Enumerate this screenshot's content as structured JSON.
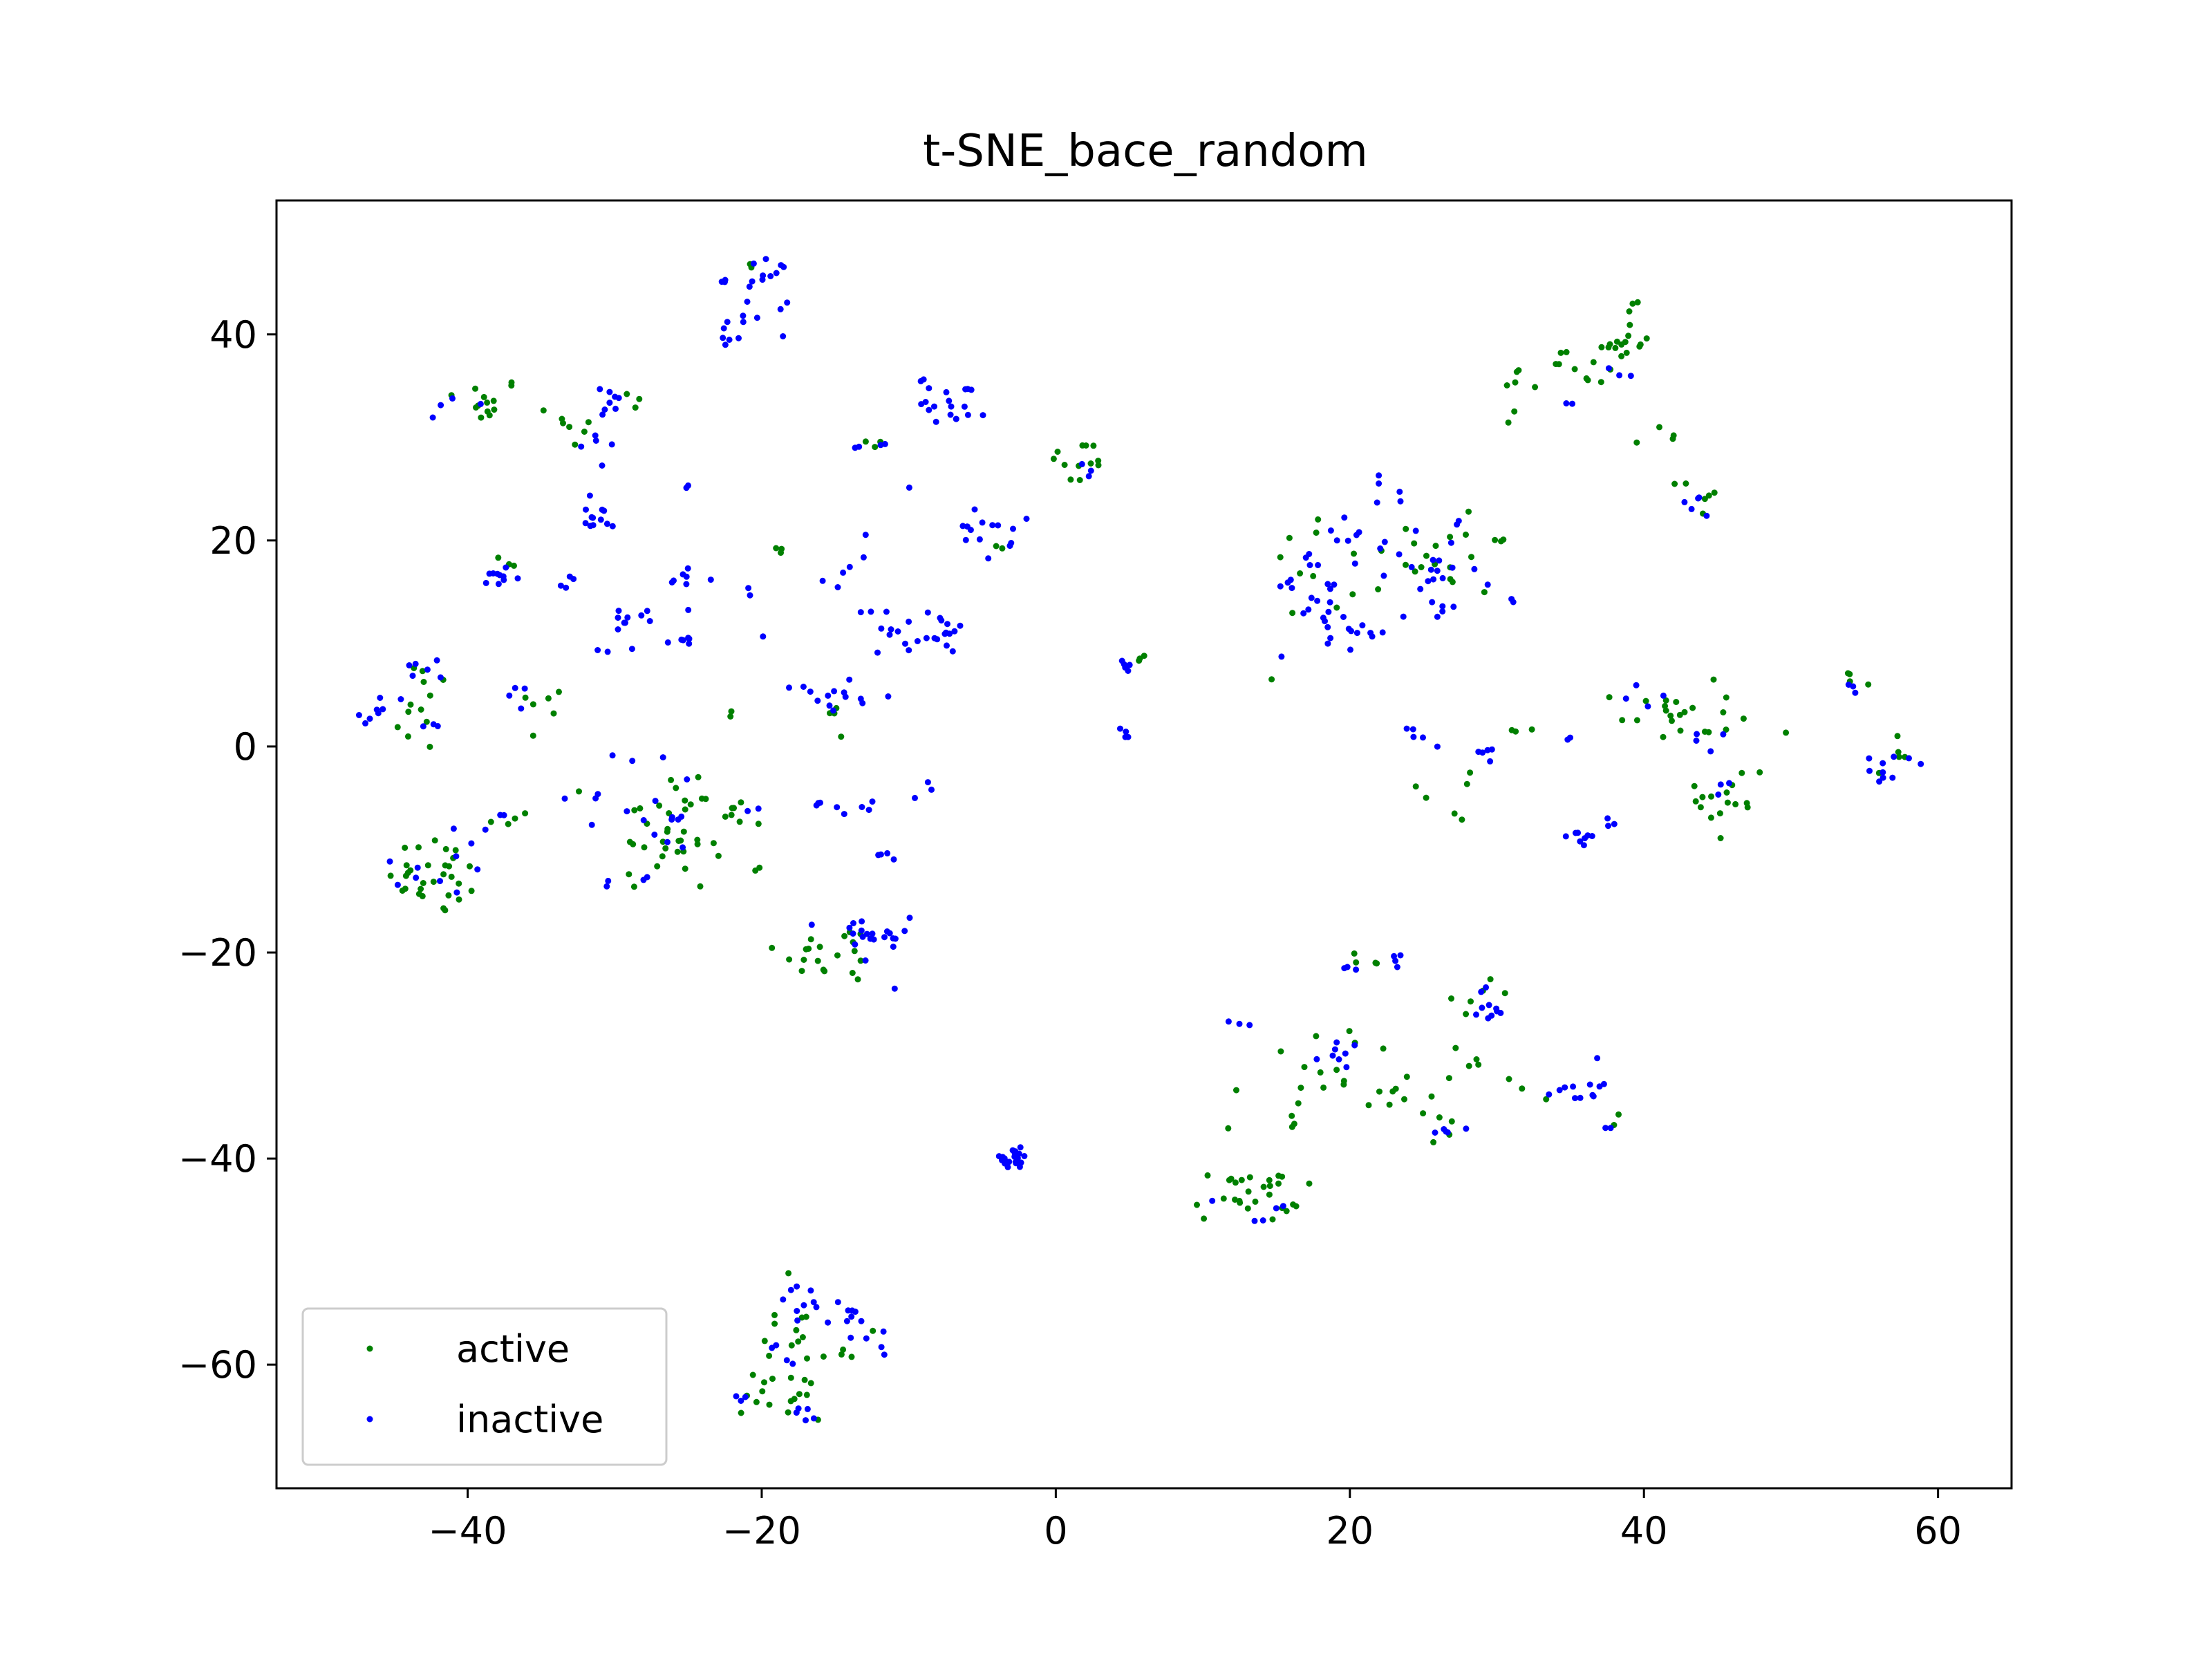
{
  "colors": {
    "active": "#008000",
    "inactive": "#0000ff"
  },
  "chart_data": {
    "type": "scatter",
    "title": "t-SNE_bace_random",
    "xlabel": "",
    "ylabel": "",
    "xlim": [
      -53,
      65
    ],
    "ylim": [
      -72,
      53
    ],
    "xticks": [
      -40,
      -20,
      0,
      20,
      40,
      60
    ],
    "yticks": [
      -60,
      -40,
      -20,
      0,
      20,
      40
    ],
    "xtick_labels": [
      "−40",
      "−20",
      "0",
      "20",
      "40",
      "60"
    ],
    "ytick_labels": [
      "−60",
      "−40",
      "−20",
      "0",
      "20",
      "40"
    ],
    "legend_position": "lower-left",
    "grid": false,
    "series": [
      {
        "name": "active",
        "color": "#008000",
        "clusters": [
          {
            "cx": -39,
            "cy": 33.5,
            "sx": 1.5,
            "sy": 1.2,
            "n": 14
          },
          {
            "cx": -33,
            "cy": 31,
            "sx": 1.0,
            "sy": 1.0,
            "n": 6
          },
          {
            "cx": -29,
            "cy": 33.5,
            "sx": 0.8,
            "sy": 0.8,
            "n": 3
          },
          {
            "cx": -37,
            "cy": 18,
            "sx": 0.5,
            "sy": 0.8,
            "n": 3
          },
          {
            "cx": -43,
            "cy": 4,
            "sx": 1.2,
            "sy": 2.5,
            "n": 12
          },
          {
            "cx": -35,
            "cy": 3,
            "sx": 0.8,
            "sy": 1.6,
            "n": 6
          },
          {
            "cx": -42,
            "cy": -12.5,
            "sx": 1.7,
            "sy": 2.0,
            "n": 30
          },
          {
            "cx": -37.5,
            "cy": -7.2,
            "sx": 0.5,
            "sy": 0.3,
            "n": 3
          },
          {
            "cx": -26,
            "cy": -8,
            "sx": 2.5,
            "sy": 3.2,
            "n": 40
          },
          {
            "cx": -22,
            "cy": -6,
            "sx": 1.0,
            "sy": 0.8,
            "n": 4
          },
          {
            "cx": -20,
            "cy": -12,
            "sx": 0.3,
            "sy": 0.3,
            "n": 2
          },
          {
            "cx": -19,
            "cy": 19,
            "sx": 0.4,
            "sy": 0.4,
            "n": 3
          },
          {
            "cx": -22.5,
            "cy": 3,
            "sx": 0.3,
            "sy": 0.3,
            "n": 2
          },
          {
            "cx": -21,
            "cy": 46.5,
            "sx": 0.4,
            "sy": 0.3,
            "n": 2
          },
          {
            "cx": -12,
            "cy": 29.5,
            "sx": 0.6,
            "sy": 0.5,
            "n": 3
          },
          {
            "cx": -15,
            "cy": 3,
            "sx": 0.8,
            "sy": 1.5,
            "n": 4
          },
          {
            "cx": -15,
            "cy": -20,
            "sx": 2.0,
            "sy": 1.5,
            "n": 20
          },
          {
            "cx": -4,
            "cy": 19.5,
            "sx": 0.4,
            "sy": 0.4,
            "n": 2
          },
          {
            "cx": 1.5,
            "cy": 27.5,
            "sx": 1.0,
            "sy": 1.2,
            "n": 12
          },
          {
            "cx": 6,
            "cy": 8.5,
            "sx": 0.3,
            "sy": 0.4,
            "n": 3
          },
          {
            "cx": 17,
            "cy": 17,
            "sx": 1.5,
            "sy": 2.5,
            "n": 8
          },
          {
            "cx": 24,
            "cy": 19,
            "sx": 2.5,
            "sy": 3.0,
            "n": 14
          },
          {
            "cx": 28,
            "cy": 17,
            "sx": 1.5,
            "sy": 2.5,
            "n": 8
          },
          {
            "cx": 34,
            "cy": 36,
            "sx": 1.8,
            "sy": 1.5,
            "n": 15
          },
          {
            "cx": 38.5,
            "cy": 39.5,
            "sx": 1.2,
            "sy": 1.5,
            "n": 18
          },
          {
            "cx": 41,
            "cy": 30,
            "sx": 0.6,
            "sy": 0.6,
            "n": 4
          },
          {
            "cx": 43.5,
            "cy": 24.5,
            "sx": 0.8,
            "sy": 1.0,
            "n": 6
          },
          {
            "cx": 42,
            "cy": 3,
            "sx": 2.0,
            "sy": 1.5,
            "n": 22
          },
          {
            "cx": 46,
            "cy": -5,
            "sx": 1.2,
            "sy": 2.5,
            "n": 16
          },
          {
            "cx": 27,
            "cy": -4,
            "sx": 1.0,
            "sy": 3.0,
            "n": 6
          },
          {
            "cx": 32,
            "cy": 1.5,
            "sx": 1.0,
            "sy": 0.5,
            "n": 3
          },
          {
            "cx": 50,
            "cy": 1.5,
            "sx": 0.3,
            "sy": 0.3,
            "n": 1
          },
          {
            "cx": 54,
            "cy": 6,
            "sx": 0.6,
            "sy": 0.6,
            "n": 4
          },
          {
            "cx": 57,
            "cy": -1,
            "sx": 1.0,
            "sy": 1.0,
            "n": 5
          },
          {
            "cx": 18,
            "cy": -30,
            "sx": 2.0,
            "sy": 2.0,
            "n": 10
          },
          {
            "cx": 24,
            "cy": -33,
            "sx": 2.0,
            "sy": 2.5,
            "n": 10
          },
          {
            "cx": 21,
            "cy": -21,
            "sx": 0.8,
            "sy": 0.5,
            "n": 4
          },
          {
            "cx": 29,
            "cy": -24,
            "sx": 1.0,
            "sy": 1.0,
            "n": 6
          },
          {
            "cx": 29,
            "cy": -31,
            "sx": 1.2,
            "sy": 1.0,
            "n": 6
          },
          {
            "cx": 27,
            "cy": -37,
            "sx": 1.0,
            "sy": 1.0,
            "n": 4
          },
          {
            "cx": 33,
            "cy": -33.5,
            "sx": 0.8,
            "sy": 0.5,
            "n": 2
          },
          {
            "cx": 37.5,
            "cy": -36.5,
            "sx": 0.4,
            "sy": 0.4,
            "n": 2
          },
          {
            "cx": 13,
            "cy": -43.5,
            "sx": 1.8,
            "sy": 1.3,
            "n": 28
          },
          {
            "cx": 12,
            "cy": -37,
            "sx": 0.5,
            "sy": 0.5,
            "n": 1
          },
          {
            "cx": 16.5,
            "cy": -36,
            "sx": 0.6,
            "sy": 3.0,
            "n": 5
          },
          {
            "cx": 12,
            "cy": -32.5,
            "sx": 0.3,
            "sy": 0.3,
            "n": 1
          },
          {
            "cx": -18,
            "cy": -60,
            "sx": 1.5,
            "sy": 3.5,
            "n": 24
          },
          {
            "cx": -21,
            "cy": -63.5,
            "sx": 1.0,
            "sy": 1.0,
            "n": 6
          },
          {
            "cx": -14,
            "cy": -58,
            "sx": 1.0,
            "sy": 1.5,
            "n": 4
          },
          {
            "cx": 30.5,
            "cy": 31.5,
            "sx": 0.2,
            "sy": 0.2,
            "n": 1
          },
          {
            "cx": 30,
            "cy": 20,
            "sx": 0.4,
            "sy": 0.3,
            "n": 2
          }
        ]
      },
      {
        "name": "inactive",
        "color": "#0000ff",
        "clusters": [
          {
            "cx": -20,
            "cy": 45.5,
            "sx": 1.2,
            "sy": 1.0,
            "n": 14
          },
          {
            "cx": -22,
            "cy": 40.5,
            "sx": 0.5,
            "sy": 0.6,
            "n": 8
          },
          {
            "cx": -20,
            "cy": 41.5,
            "sx": 0.8,
            "sy": 0.8,
            "n": 4
          },
          {
            "cx": -40.5,
            "cy": 32.5,
            "sx": 0.8,
            "sy": 0.8,
            "n": 4
          },
          {
            "cx": -30,
            "cy": 33.5,
            "sx": 0.8,
            "sy": 0.8,
            "n": 8
          },
          {
            "cx": -31,
            "cy": 28.5,
            "sx": 0.8,
            "sy": 0.8,
            "n": 5
          },
          {
            "cx": -31,
            "cy": 22.5,
            "sx": 1.0,
            "sy": 1.0,
            "n": 12
          },
          {
            "cx": -38,
            "cy": 16.5,
            "sx": 0.8,
            "sy": 0.8,
            "n": 10
          },
          {
            "cx": -33,
            "cy": 15.5,
            "sx": 0.6,
            "sy": 0.5,
            "n": 4
          },
          {
            "cx": -28.5,
            "cy": 11.5,
            "sx": 1.2,
            "sy": 1.2,
            "n": 10
          },
          {
            "cx": -25.5,
            "cy": 10.5,
            "sx": 0.6,
            "sy": 0.6,
            "n": 6
          },
          {
            "cx": -25,
            "cy": 16,
            "sx": 0.8,
            "sy": 1.0,
            "n": 8
          },
          {
            "cx": -25,
            "cy": 25,
            "sx": 0.4,
            "sy": 0.3,
            "n": 2
          },
          {
            "cx": -21,
            "cy": 15,
            "sx": 0.5,
            "sy": 0.3,
            "n": 2
          },
          {
            "cx": -20,
            "cy": 10.5,
            "sx": 0.3,
            "sy": 0.3,
            "n": 1
          },
          {
            "cx": -12,
            "cy": 29.5,
            "sx": 0.8,
            "sy": 0.5,
            "n": 4
          },
          {
            "cx": -10,
            "cy": 25.5,
            "sx": 0.3,
            "sy": 0.3,
            "n": 1
          },
          {
            "cx": -7,
            "cy": 33.5,
            "sx": 1.2,
            "sy": 1.2,
            "n": 20
          },
          {
            "cx": -5,
            "cy": 20.5,
            "sx": 1.0,
            "sy": 1.2,
            "n": 14
          },
          {
            "cx": -14,
            "cy": 17.5,
            "sx": 1.5,
            "sy": 1.5,
            "n": 6
          },
          {
            "cx": -9,
            "cy": 11,
            "sx": 1.5,
            "sy": 1.0,
            "n": 22
          },
          {
            "cx": -12,
            "cy": 13,
            "sx": 0.8,
            "sy": 0.8,
            "n": 4
          },
          {
            "cx": -15,
            "cy": 5,
            "sx": 1.2,
            "sy": 1.0,
            "n": 12
          },
          {
            "cx": -17,
            "cy": 6,
            "sx": 0.5,
            "sy": 0.3,
            "n": 2
          },
          {
            "cx": -46,
            "cy": 3.5,
            "sx": 1.0,
            "sy": 0.8,
            "n": 8
          },
          {
            "cx": -43,
            "cy": 7.5,
            "sx": 0.8,
            "sy": 0.8,
            "n": 6
          },
          {
            "cx": -42,
            "cy": 2,
            "sx": 0.5,
            "sy": 0.5,
            "n": 3
          },
          {
            "cx": -36.5,
            "cy": 5,
            "sx": 0.6,
            "sy": 0.6,
            "n": 4
          },
          {
            "cx": -31,
            "cy": 9.5,
            "sx": 0.3,
            "sy": 0.3,
            "n": 2
          },
          {
            "cx": -44.5,
            "cy": -11.5,
            "sx": 0.5,
            "sy": 0.5,
            "n": 3
          },
          {
            "cx": -40.5,
            "cy": -11,
            "sx": 1.2,
            "sy": 2.0,
            "n": 8
          },
          {
            "cx": -37.5,
            "cy": -6.5,
            "sx": 0.4,
            "sy": 0.3,
            "n": 2
          },
          {
            "cx": -31.5,
            "cy": -6,
            "sx": 0.8,
            "sy": 1.5,
            "n": 5
          },
          {
            "cx": -27,
            "cy": -5,
            "sx": 1.5,
            "sy": 2.5,
            "n": 10
          },
          {
            "cx": -29.5,
            "cy": -13.5,
            "sx": 0.5,
            "sy": 0.3,
            "n": 2
          },
          {
            "cx": -20.5,
            "cy": -6,
            "sx": 0.4,
            "sy": 0.4,
            "n": 2
          },
          {
            "cx": -16,
            "cy": -5.5,
            "sx": 1.0,
            "sy": 0.3,
            "n": 3
          },
          {
            "cx": -13,
            "cy": -6,
            "sx": 1.0,
            "sy": 0.6,
            "n": 5
          },
          {
            "cx": -12,
            "cy": -11,
            "sx": 0.4,
            "sy": 0.4,
            "n": 4
          },
          {
            "cx": -9,
            "cy": -4.5,
            "sx": 0.3,
            "sy": 0.6,
            "n": 3
          },
          {
            "cx": -13,
            "cy": -19,
            "sx": 1.5,
            "sy": 1.5,
            "n": 22
          },
          {
            "cx": 5,
            "cy": 8,
            "sx": 0.5,
            "sy": 0.5,
            "n": 6
          },
          {
            "cx": 4.5,
            "cy": 1,
            "sx": 0.3,
            "sy": 0.5,
            "n": 4
          },
          {
            "cx": 2,
            "cy": 27,
            "sx": 0.5,
            "sy": 0.5,
            "n": 3
          },
          {
            "cx": -3,
            "cy": -40,
            "sx": 0.8,
            "sy": 0.5,
            "n": 20
          },
          {
            "cx": 18,
            "cy": 14,
            "sx": 1.5,
            "sy": 2.5,
            "n": 20
          },
          {
            "cx": 19.5,
            "cy": 20.5,
            "sx": 0.8,
            "sy": 1.5,
            "n": 8
          },
          {
            "cx": 21,
            "cy": 11,
            "sx": 1.0,
            "sy": 1.0,
            "n": 8
          },
          {
            "cx": 23,
            "cy": 21.5,
            "sx": 1.0,
            "sy": 2.0,
            "n": 10
          },
          {
            "cx": 26,
            "cy": 17,
            "sx": 1.5,
            "sy": 2.0,
            "n": 16
          },
          {
            "cx": 25.5,
            "cy": 13,
            "sx": 0.8,
            "sy": 0.8,
            "n": 5
          },
          {
            "cx": 31,
            "cy": 14,
            "sx": 0.3,
            "sy": 0.3,
            "n": 2
          },
          {
            "cx": 16,
            "cy": 15.5,
            "sx": 0.5,
            "sy": 0.5,
            "n": 3
          },
          {
            "cx": 38,
            "cy": 36,
            "sx": 0.5,
            "sy": 0.5,
            "n": 3
          },
          {
            "cx": 35,
            "cy": 33,
            "sx": 0.3,
            "sy": 0.5,
            "n": 2
          },
          {
            "cx": 43.5,
            "cy": 24,
            "sx": 0.6,
            "sy": 1.0,
            "n": 5
          },
          {
            "cx": 40.5,
            "cy": 5,
            "sx": 0.8,
            "sy": 0.8,
            "n": 4
          },
          {
            "cx": 44,
            "cy": 0.5,
            "sx": 0.8,
            "sy": 1.0,
            "n": 4
          },
          {
            "cx": 45,
            "cy": -5,
            "sx": 0.8,
            "sy": 1.2,
            "n": 3
          },
          {
            "cx": 25,
            "cy": 1.2,
            "sx": 1.0,
            "sy": 0.3,
            "n": 4
          },
          {
            "cx": 28.5,
            "cy": -1,
            "sx": 1.0,
            "sy": 1.0,
            "n": 6
          },
          {
            "cx": 35,
            "cy": 0.8,
            "sx": 0.3,
            "sy": 0.3,
            "n": 2
          },
          {
            "cx": 35.5,
            "cy": -8.5,
            "sx": 0.8,
            "sy": 0.6,
            "n": 8
          },
          {
            "cx": 37.5,
            "cy": -7.5,
            "sx": 0.6,
            "sy": 0.5,
            "n": 3
          },
          {
            "cx": 54,
            "cy": 6,
            "sx": 0.4,
            "sy": 0.3,
            "n": 3
          },
          {
            "cx": 56,
            "cy": -1.5,
            "sx": 1.0,
            "sy": 1.2,
            "n": 8
          },
          {
            "cx": 58.5,
            "cy": -1.5,
            "sx": 0.3,
            "sy": 0.3,
            "n": 2
          },
          {
            "cx": 12.5,
            "cy": -27,
            "sx": 0.4,
            "sy": 0.3,
            "n": 3
          },
          {
            "cx": 20,
            "cy": -21.5,
            "sx": 0.5,
            "sy": 0.3,
            "n": 3
          },
          {
            "cx": 23,
            "cy": -21,
            "sx": 0.5,
            "sy": 0.4,
            "n": 4
          },
          {
            "cx": 19,
            "cy": -29.5,
            "sx": 0.6,
            "sy": 0.8,
            "n": 8
          },
          {
            "cx": 30.5,
            "cy": -26,
            "sx": 1.0,
            "sy": 0.8,
            "n": 8
          },
          {
            "cx": 29,
            "cy": -23.5,
            "sx": 0.3,
            "sy": 0.3,
            "n": 2
          },
          {
            "cx": 26.5,
            "cy": -37,
            "sx": 0.8,
            "sy": 0.6,
            "n": 5
          },
          {
            "cx": 35.5,
            "cy": -33,
            "sx": 0.8,
            "sy": 0.8,
            "n": 12
          },
          {
            "cx": 37.5,
            "cy": -37,
            "sx": 0.3,
            "sy": 0.3,
            "n": 2
          },
          {
            "cx": 14,
            "cy": -46,
            "sx": 0.3,
            "sy": 0.2,
            "n": 2
          },
          {
            "cx": 15.5,
            "cy": -44.5,
            "sx": 0.4,
            "sy": 0.3,
            "n": 2
          },
          {
            "cx": 10.5,
            "cy": -44.5,
            "sx": 0.3,
            "sy": 0.3,
            "n": 1
          },
          {
            "cx": -17,
            "cy": -53.5,
            "sx": 0.8,
            "sy": 1.0,
            "n": 8
          },
          {
            "cx": -14,
            "cy": -56,
            "sx": 1.0,
            "sy": 1.2,
            "n": 10
          },
          {
            "cx": -12,
            "cy": -57.5,
            "sx": 0.5,
            "sy": 1.0,
            "n": 4
          },
          {
            "cx": -17.5,
            "cy": -65,
            "sx": 0.8,
            "sy": 0.5,
            "n": 5
          },
          {
            "cx": -21.5,
            "cy": -63,
            "sx": 0.6,
            "sy": 0.3,
            "n": 3
          },
          {
            "cx": -18,
            "cy": -59,
            "sx": 0.8,
            "sy": 1.0,
            "n": 4
          },
          {
            "cx": -26,
            "cy": -6.5,
            "sx": 0.5,
            "sy": 0.5,
            "n": 3
          },
          {
            "cx": -28,
            "cy": -12.5,
            "sx": 0.5,
            "sy": 0.4,
            "n": 2
          }
        ]
      }
    ]
  }
}
